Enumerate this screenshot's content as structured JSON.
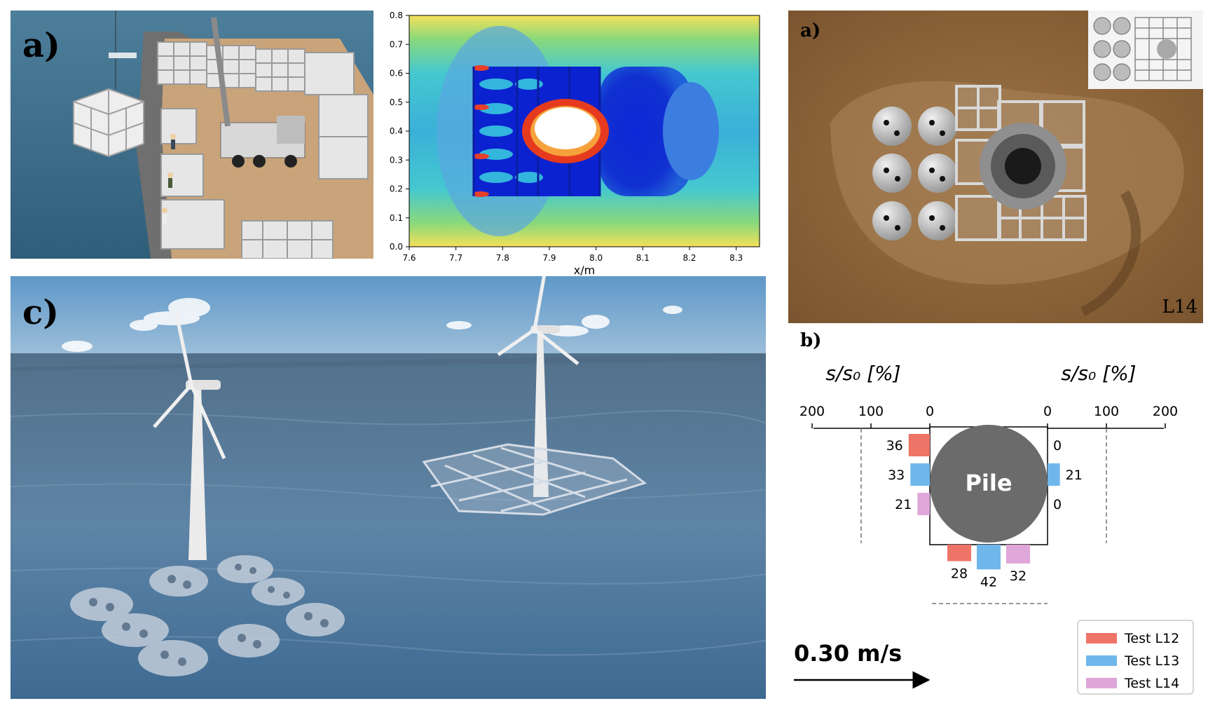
{
  "panels": {
    "photo_a": {
      "label": "a)"
    },
    "scour_photo": {
      "label": "a)",
      "corner_label": "L14"
    },
    "rendering_c": {
      "label": "c)"
    },
    "diagram_b": {
      "label": "b)"
    }
  },
  "cfd_plot": {
    "xlabel": "x/m",
    "xticks": [
      "7.6",
      "7.7",
      "7.8",
      "7.9",
      "8.0",
      "8.1",
      "8.2",
      "8.3"
    ],
    "yticks": [
      "0.0",
      "0.1",
      "0.2",
      "0.3",
      "0.4",
      "0.5",
      "0.6",
      "0.7",
      "0.8"
    ]
  },
  "scour_diagram": {
    "axis_label_left": "s/s₀  [%]",
    "axis_label_right": "s/s₀  [%]",
    "ticks_left": [
      "200",
      "100",
      "0"
    ],
    "ticks_right": [
      "0",
      "100",
      "200"
    ],
    "pile_label": "Pile",
    "velocity_label": "0.30 m/s",
    "legend": [
      {
        "label": "Test L12",
        "color": "#ee7468"
      },
      {
        "label": "Test L13",
        "color": "#6fb7ea"
      },
      {
        "label": "Test L14",
        "color": "#dfa6d9"
      }
    ],
    "bars": {
      "left": [
        {
          "test": "L12",
          "value": 36
        },
        {
          "test": "L13",
          "value": 33
        },
        {
          "test": "L14",
          "value": 21
        }
      ],
      "right": [
        {
          "test": "L12",
          "value": 0
        },
        {
          "test": "L13",
          "value": 21
        },
        {
          "test": "L14",
          "value": 0
        }
      ],
      "bottom": [
        {
          "test": "L12",
          "value": 28
        },
        {
          "test": "L13",
          "value": 42
        },
        {
          "test": "L14",
          "value": 32
        }
      ]
    }
  }
}
